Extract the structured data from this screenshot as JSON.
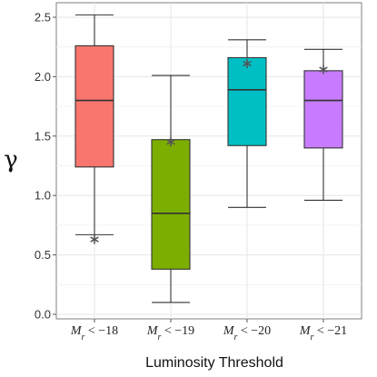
{
  "chart_data": {
    "type": "box",
    "xlabel": "Luminosity Threshold",
    "ylabel": "γ",
    "ylim": [
      0,
      2.6
    ],
    "yticks": [
      0.0,
      0.5,
      1.0,
      1.5,
      2.0,
      2.5
    ],
    "ytick_labels": [
      "0.0",
      "0.5",
      "1.0",
      "1.5",
      "2.0",
      "2.5"
    ],
    "grid": true,
    "categories": [
      {
        "sym": "M",
        "sub": "r",
        "rel": " < −18"
      },
      {
        "sym": "M",
        "sub": "r",
        "rel": " < −19"
      },
      {
        "sym": "M",
        "sub": "r",
        "rel": " < −20"
      },
      {
        "sym": "M",
        "sub": "r",
        "rel": " < −21"
      }
    ],
    "boxes": [
      {
        "whisker_low": 0.67,
        "q1": 1.24,
        "median": 1.8,
        "q3": 2.26,
        "whisker_high": 2.52,
        "marker": 0.63,
        "color": "#F8766D"
      },
      {
        "whisker_low": 0.1,
        "q1": 0.38,
        "median": 0.85,
        "q3": 1.47,
        "whisker_high": 2.01,
        "marker": 1.45,
        "color": "#7CAE00"
      },
      {
        "whisker_low": 0.9,
        "q1": 1.42,
        "median": 1.89,
        "q3": 2.16,
        "whisker_high": 2.31,
        "marker": 2.11,
        "color": "#00BFC4"
      },
      {
        "whisker_low": 0.96,
        "q1": 1.4,
        "median": 1.8,
        "q3": 2.05,
        "whisker_high": 2.23,
        "marker": 2.06,
        "color": "#C77CFF"
      }
    ],
    "marker_symbol": "*",
    "marker_color": "#555555"
  }
}
